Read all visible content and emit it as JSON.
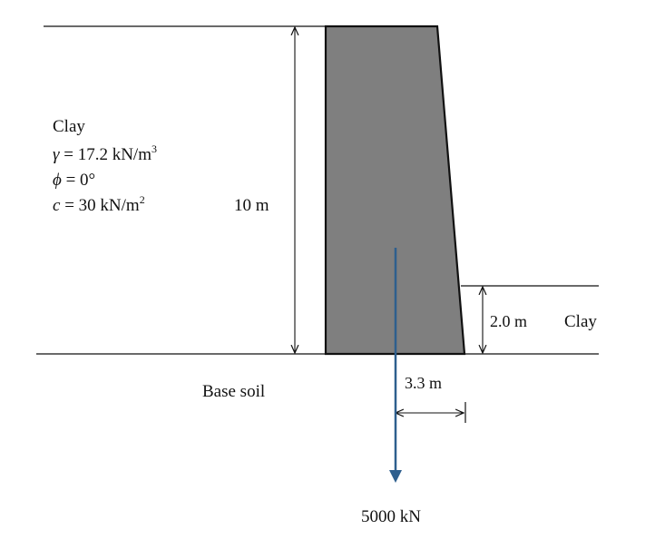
{
  "soil": {
    "name": "Clay",
    "gamma_sym": "γ",
    "gamma_rest": " = 17.2 kN/m",
    "gamma_exp": "3",
    "phi_sym": "ϕ",
    "phi_rest": " = 0°",
    "c_sym": "c",
    "c_rest": " = 30 kN/m",
    "c_exp": "2"
  },
  "wall_height_label": "10 m",
  "front_soil_depth_label": "2.0 m",
  "front_soil_name": "Clay",
  "base_label": "Base soil",
  "resultant_offset_label": "3.3 m",
  "load_label": "5000 kN",
  "colors": {
    "wall_fill": "#7f7f7f",
    "line": "#111111",
    "arrow": "#2e5f8e"
  }
}
